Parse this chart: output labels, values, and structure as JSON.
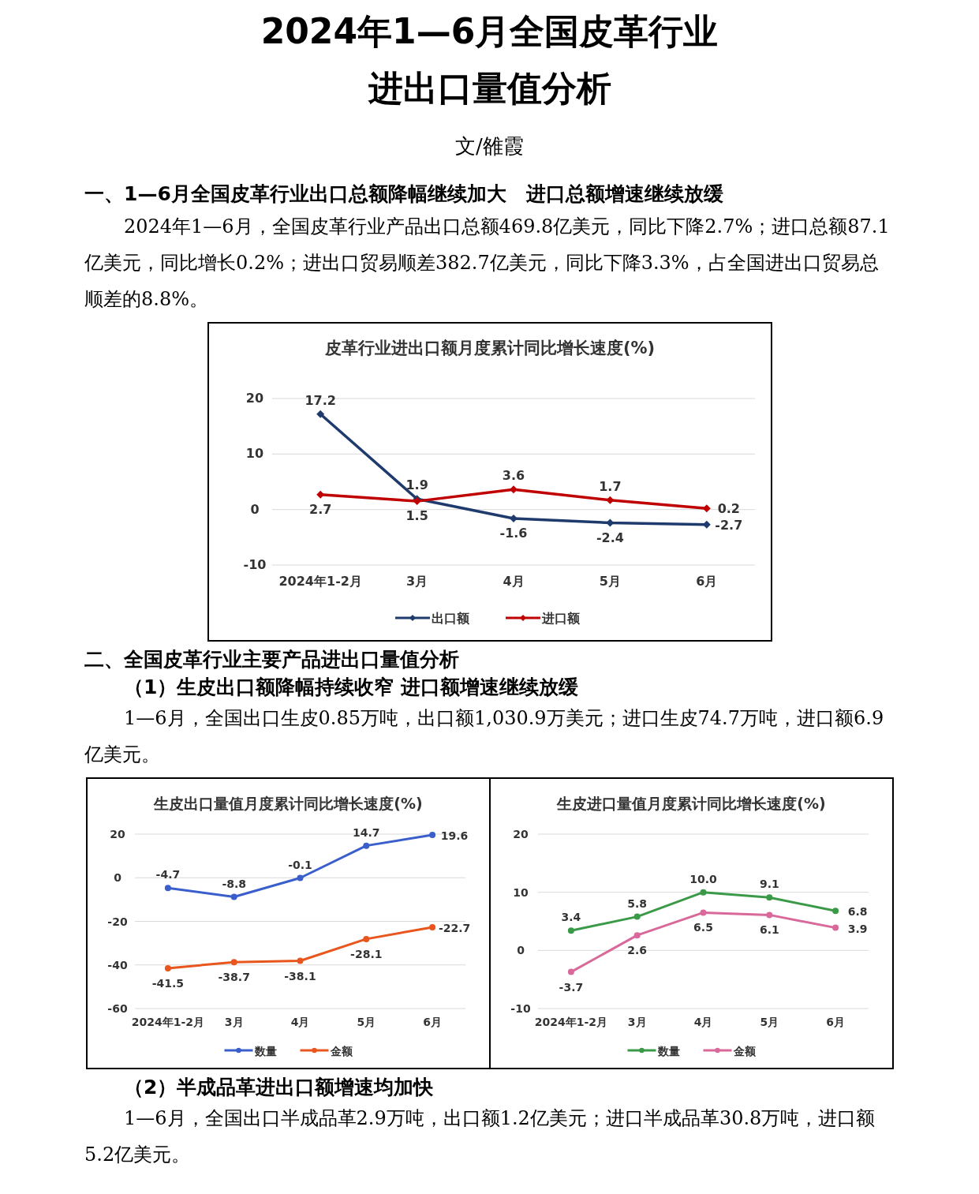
{
  "chart_data": [
    {
      "type": "other",
      "title": "2024年1—6月全国皮革行业进出口量值分析",
      "subtitle": "文/雒霞"
    },
    {
      "type": "other",
      "title": "一、1—6月全国皮革行业出口总额降幅继续加大　进口总额增速继续放缓",
      "annotations": [
        "2024年1—6月，全国皮革行业产品出口总额469.8亿美元，同比下降2.7%；进口总额87.1亿美元，同比增长0.2%；进出口贸易顺差382.7亿美元，同比下降3.3%，占全国进出口贸易总顺差的8.8%。"
      ]
    },
    {
      "type": "line",
      "title": "皮革行业进出口额月度累计同比增长速度(%)",
      "categories": [
        "2024年1-2月",
        "3月",
        "4月",
        "5月",
        "6月"
      ],
      "ylim": [
        -10,
        20
      ],
      "yticks": [
        -10,
        0,
        10,
        20
      ],
      "grid": "y",
      "legend": "bottom",
      "marker": "diamond",
      "line_style": "solid",
      "series": [
        {
          "name": "出口额",
          "color": "#1f3b6e",
          "values": [
            17.2,
            1.9,
            -1.6,
            -2.4,
            -2.7
          ],
          "value_labels": [
            "17.2",
            "1.9",
            "-1.6",
            "-2.4",
            "-2.7"
          ]
        },
        {
          "name": "进口额",
          "color": "#c00000",
          "values": [
            2.7,
            1.5,
            3.6,
            1.7,
            0.2
          ],
          "value_labels": [
            "2.7",
            "1.5",
            "3.6",
            "1.7",
            "0.2"
          ]
        }
      ]
    },
    {
      "type": "other",
      "title": "二、全国皮革行业主要产品进出口量值分析",
      "subtitle": "（1）生皮出口额降幅持续收窄  进口额增速继续放缓",
      "annotations": [
        "1—6月，全国出口生皮0.85万吨，出口额1,030.9万美元；进口生皮74.7万吨，进口额6.9亿美元。"
      ]
    },
    {
      "type": "line",
      "title": "生皮出口量值月度累计同比增长速度(%)",
      "categories": [
        "2024年1-2月",
        "3月",
        "4月",
        "5月",
        "6月"
      ],
      "ylim": [
        -60,
        20
      ],
      "yticks": [
        -60,
        -40,
        -20,
        0,
        20
      ],
      "grid": "y",
      "legend": "bottom",
      "marker": "circle",
      "line_style": "solid",
      "series": [
        {
          "name": "数量",
          "color": "#3a5fcd",
          "values": [
            -4.7,
            -8.8,
            -0.1,
            14.7,
            19.6
          ],
          "value_labels": [
            "-4.7",
            "-8.8",
            "-0.1",
            "14.7",
            "19.6"
          ]
        },
        {
          "name": "金额",
          "color": "#e8561e",
          "values": [
            -41.5,
            -38.7,
            -38.1,
            -28.1,
            -22.7
          ],
          "value_labels": [
            "-41.5",
            "-38.7",
            "-38.1",
            "-28.1",
            "-22.7"
          ]
        }
      ]
    },
    {
      "type": "line",
      "title": "生皮进口量值月度累计同比增长速度(%)",
      "categories": [
        "2024年1-2月",
        "3月",
        "4月",
        "5月",
        "6月"
      ],
      "ylim": [
        -10,
        20
      ],
      "yticks": [
        -10,
        0,
        10,
        20
      ],
      "grid": "y",
      "legend": "bottom",
      "marker": "circle",
      "line_style": "solid",
      "series": [
        {
          "name": "数量",
          "color": "#3a9a48",
          "values": [
            3.4,
            5.8,
            10.0,
            9.1,
            6.8
          ],
          "value_labels": [
            "3.4",
            "5.8",
            "10.0",
            "9.1",
            "6.8"
          ]
        },
        {
          "name": "金额",
          "color": "#d9699a",
          "values": [
            -3.7,
            2.6,
            6.5,
            6.1,
            3.9
          ],
          "value_labels": [
            "-3.7",
            "2.6",
            "6.5",
            "6.1",
            "3.9"
          ]
        }
      ]
    },
    {
      "type": "other",
      "subtitle": "（2）半成品革进出口额增速均加快",
      "annotations": [
        "1—6月，全国出口半成品革2.9万吨，出口额1.2亿美元；进口半成品革30.8万吨，进口额5.2亿美元。"
      ]
    }
  ]
}
